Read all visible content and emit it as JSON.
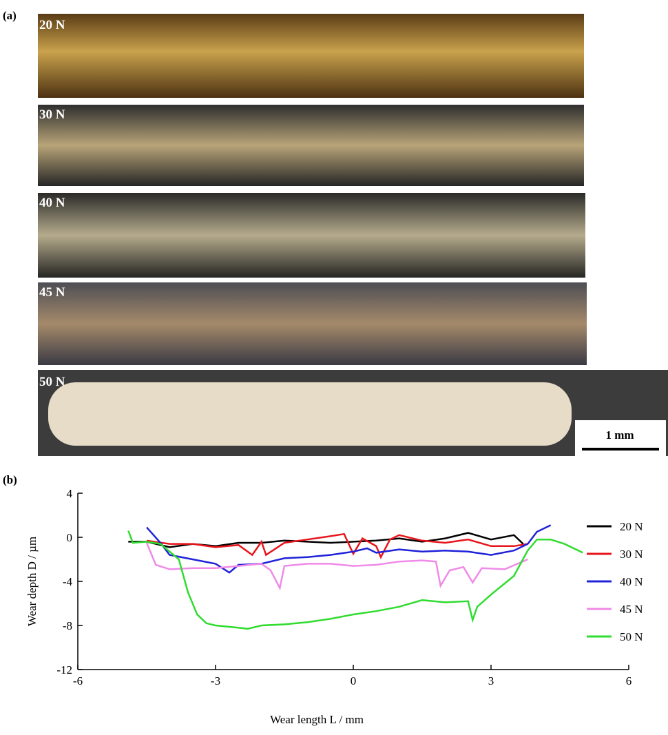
{
  "panel_a": {
    "label": "(a)",
    "strips": [
      "20 N",
      "30 N",
      "40 N",
      "45 N",
      "50 N"
    ],
    "scale_bar": "1 mm"
  },
  "chart_data": {
    "type": "line",
    "panel_label": "(b)",
    "xlabel": "Wear length L / mm",
    "ylabel": "Wear depth D / µm",
    "xlim": [
      -6,
      6
    ],
    "xticks": [
      -6,
      -3,
      0,
      3,
      6
    ],
    "ylim": [
      -12,
      4
    ],
    "yticks": [
      -12,
      -8,
      -4,
      0,
      4
    ],
    "series": [
      {
        "name": "20 N",
        "color": "#000000",
        "x": [
          -4.9,
          -4.5,
          -4,
          -3.5,
          -3,
          -2.5,
          -2,
          -1.5,
          -1,
          -0.5,
          0,
          0.5,
          1,
          1.5,
          2,
          2.5,
          3,
          3.5,
          3.7
        ],
        "values": [
          -0.4,
          -0.4,
          -0.9,
          -0.6,
          -0.8,
          -0.5,
          -0.5,
          -0.3,
          -0.4,
          -0.5,
          -0.4,
          -0.3,
          -0.1,
          -0.4,
          -0.1,
          0.4,
          -0.2,
          0.2,
          -0.6
        ]
      },
      {
        "name": "30 N",
        "color": "#e8141b",
        "x": [
          -4.5,
          -4,
          -3.5,
          -3,
          -2.5,
          -2.2,
          -2,
          -1.9,
          -1.5,
          -1,
          -0.5,
          -0.2,
          0,
          0.2,
          0.5,
          0.6,
          0.8,
          1,
          1.5,
          2,
          2.5,
          3,
          3.5,
          3.8
        ],
        "values": [
          -0.3,
          -0.6,
          -0.6,
          -0.9,
          -0.7,
          -1.6,
          -0.4,
          -1.6,
          -0.5,
          -0.2,
          0.1,
          0.3,
          -1.5,
          -0.1,
          -0.8,
          -1.8,
          -0.2,
          0.2,
          -0.3,
          -0.5,
          -0.2,
          -0.8,
          -0.8,
          -0.6
        ]
      },
      {
        "name": "40 N",
        "color": "#1f22d8",
        "x": [
          -4.5,
          -4.2,
          -4,
          -3.5,
          -3,
          -2.7,
          -2.5,
          -2,
          -1.5,
          -1,
          -0.5,
          0,
          0.3,
          0.5,
          1,
          1.5,
          2,
          2.5,
          3,
          3.5,
          3.8,
          4,
          4.3
        ],
        "values": [
          0.9,
          -0.5,
          -1.6,
          -2,
          -2.4,
          -3.2,
          -2.5,
          -2.4,
          -1.9,
          -1.8,
          -1.6,
          -1.3,
          -1,
          -1.4,
          -1.1,
          -1.3,
          -1.2,
          -1.3,
          -1.6,
          -1.2,
          -0.6,
          0.5,
          1.1
        ]
      },
      {
        "name": "45 N",
        "color": "#f08ae8",
        "x": [
          -4.5,
          -4.3,
          -4,
          -3.5,
          -3,
          -2.5,
          -2,
          -1.8,
          -1.6,
          -1.5,
          -1,
          -0.5,
          0,
          0.5,
          1,
          1.5,
          1.8,
          1.9,
          2.1,
          2.4,
          2.6,
          2.8,
          3.3,
          3.8
        ],
        "values": [
          -0.5,
          -2.5,
          -2.9,
          -2.8,
          -2.8,
          -2.6,
          -2.4,
          -3,
          -4.6,
          -2.6,
          -2.4,
          -2.4,
          -2.6,
          -2.5,
          -2.2,
          -2.1,
          -2.2,
          -4.4,
          -3,
          -2.7,
          -4.1,
          -2.8,
          -2.9,
          -2
        ]
      },
      {
        "name": "50 N",
        "color": "#2fdc2f",
        "x": [
          -4.9,
          -4.8,
          -4.5,
          -4.2,
          -3.8,
          -3.6,
          -3.4,
          -3.2,
          -3,
          -2.5,
          -2.3,
          -2,
          -1.5,
          -1,
          -0.5,
          0,
          0.5,
          1,
          1.5,
          2,
          2.5,
          2.6,
          2.7,
          3,
          3.5,
          3.8,
          4,
          4.3,
          4.6,
          5
        ],
        "values": [
          0.6,
          -0.5,
          -0.4,
          -0.6,
          -2,
          -5,
          -7,
          -7.8,
          -8,
          -8.2,
          -8.3,
          -8,
          -7.9,
          -7.7,
          -7.4,
          -7,
          -6.7,
          -6.3,
          -5.7,
          -5.9,
          -5.8,
          -7.5,
          -6.3,
          -5.2,
          -3.5,
          -1.2,
          -0.2,
          -0.2,
          -0.6,
          -1.4
        ]
      }
    ]
  }
}
